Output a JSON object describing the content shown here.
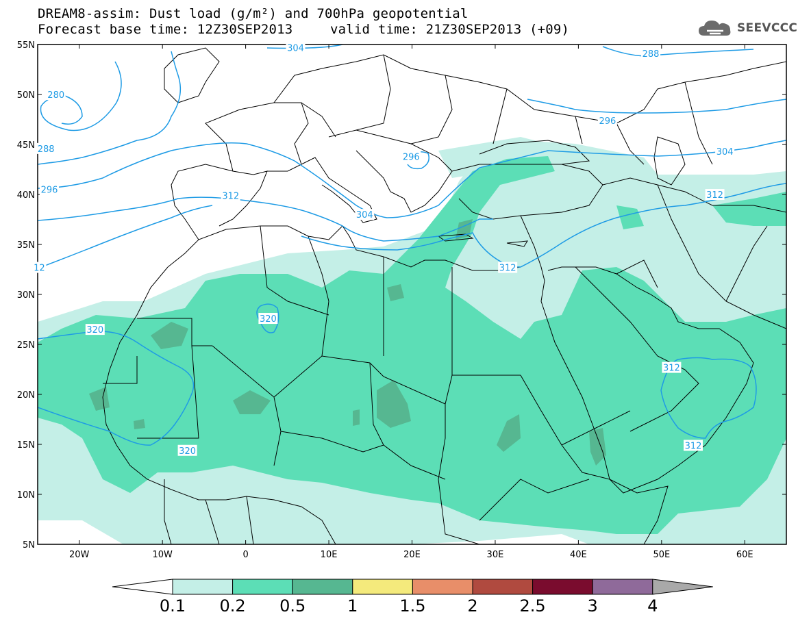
{
  "header": {
    "line1": "DREAM8-assim: Dust load (g/m²) and 700hPa geopotential",
    "line2_left": "Forecast base time: 12Z30SEP2013",
    "line2_right": "valid time: 21Z30SEP2013 (+09)",
    "logo_text": "SEEVCCC",
    "logo_icon": "cloud-icon"
  },
  "map": {
    "lon_range": [
      -25,
      65
    ],
    "lat_range": [
      5,
      55
    ],
    "x_ticks": [
      {
        "lon": -20,
        "label": "20W"
      },
      {
        "lon": -10,
        "label": "10W"
      },
      {
        "lon": 0,
        "label": "0"
      },
      {
        "lon": 10,
        "label": "10E"
      },
      {
        "lon": 20,
        "label": "20E"
      },
      {
        "lon": 30,
        "label": "30E"
      },
      {
        "lon": 40,
        "label": "40E"
      },
      {
        "lon": 50,
        "label": "50E"
      },
      {
        "lon": 60,
        "label": "60E"
      }
    ],
    "y_ticks": [
      {
        "lat": 55,
        "label": "55N"
      },
      {
        "lat": 50,
        "label": "50N"
      },
      {
        "lat": 45,
        "label": "45N"
      },
      {
        "lat": 40,
        "label": "40N"
      },
      {
        "lat": 35,
        "label": "35N"
      },
      {
        "lat": 30,
        "label": "30N"
      },
      {
        "lat": 25,
        "label": "25N"
      },
      {
        "lat": 20,
        "label": "20N"
      },
      {
        "lat": 15,
        "label": "15N"
      },
      {
        "lat": 10,
        "label": "10N"
      },
      {
        "lat": 5,
        "label": "5N"
      }
    ],
    "contour_color": "#1e9be5",
    "contour_labels": [
      {
        "text": "304",
        "lon": 6.0,
        "lat": 54.7
      },
      {
        "text": "288",
        "lon": 48.7,
        "lat": 54.1
      },
      {
        "text": "280",
        "lon": -22.8,
        "lat": 50.0
      },
      {
        "text": "296",
        "lon": 43.5,
        "lat": 47.4
      },
      {
        "text": "288",
        "lon": -24.0,
        "lat": 44.6
      },
      {
        "text": "304",
        "lon": 57.6,
        "lat": 44.3
      },
      {
        "text": "296",
        "lon": 19.9,
        "lat": 43.8
      },
      {
        "text": "296",
        "lon": -23.6,
        "lat": 40.5
      },
      {
        "text": "312",
        "lon": 56.4,
        "lat": 40.0
      },
      {
        "text": "312",
        "lon": -1.8,
        "lat": 39.9
      },
      {
        "text": "304",
        "lon": 14.3,
        "lat": 38.0
      },
      {
        "text": "312",
        "lon": 31.5,
        "lat": 32.7
      },
      {
        "text": "12",
        "lon": -24.8,
        "lat": 32.7
      },
      {
        "text": "320",
        "lon": 2.7,
        "lat": 27.6
      },
      {
        "text": "320",
        "lon": -18.1,
        "lat": 26.5
      },
      {
        "text": "312",
        "lon": 51.2,
        "lat": 22.7
      },
      {
        "text": "320",
        "lon": -7.0,
        "lat": 14.4
      },
      {
        "text": "312",
        "lon": 53.8,
        "lat": 14.9
      }
    ]
  },
  "colorbar": {
    "labels": [
      "0.1",
      "0.2",
      "0.5",
      "1",
      "1.5",
      "2",
      "2.5",
      "3",
      "4"
    ],
    "colors": [
      "#c4efe7",
      "#5cdeb6",
      "#56b791",
      "#f4ea7c",
      "#e88e69",
      "#b04a3f",
      "#7a0c2e",
      "#8f6a9a"
    ],
    "low_end_color": "#ffffff",
    "high_end_color": "#a9a9a9"
  },
  "colors": {
    "dust_light": "#c4efe7",
    "dust_medium": "#5cdeb6",
    "dust_dark": "#56b791",
    "contour": "#1e9be5",
    "border": "#000000"
  }
}
